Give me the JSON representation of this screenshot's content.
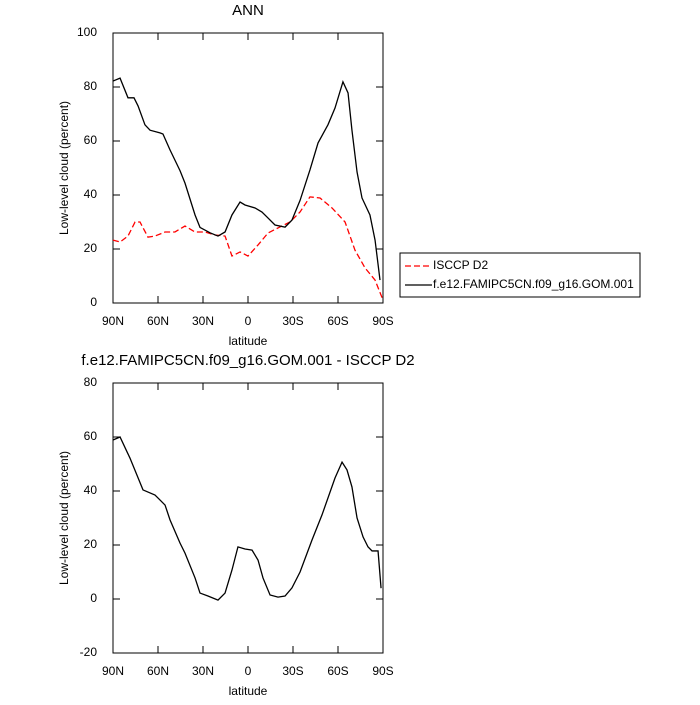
{
  "chart_data": [
    {
      "type": "line",
      "title": "ANN",
      "x_label": "latitude",
      "y_label": "Low-level cloud (percent)",
      "xlim": [
        90,
        -90
      ],
      "ylim": [
        0,
        100
      ],
      "xticks": [
        {
          "value": 90,
          "label": "90N"
        },
        {
          "value": 60,
          "label": "60N"
        },
        {
          "value": 30,
          "label": "30N"
        },
        0,
        {
          "value": -30,
          "label": "30S"
        },
        {
          "value": -60,
          "label": "60S"
        },
        {
          "value": -90,
          "label": "90S"
        }
      ],
      "yticks": [
        0,
        20,
        40,
        60,
        80,
        100
      ],
      "legend": "right",
      "series": [
        {
          "name": "ISCCP D2",
          "color": "#ff0000",
          "dashed": true,
          "x": [
            90,
            85.3,
            80,
            75.3,
            72,
            66.7,
            62,
            55.3,
            48.7,
            42,
            35.3,
            28.7,
            22,
            15.3,
            10.7,
            5.3,
            0,
            -6.7,
            -13.3,
            -20,
            -28,
            -34.7,
            -41.3,
            -48,
            -56,
            -64.7,
            -71.3,
            -78,
            -84.7,
            -90
          ],
          "values": [
            23.3,
            22.6,
            24.8,
            30,
            30,
            24.4,
            24.8,
            26.3,
            26.3,
            28.5,
            26.3,
            26.3,
            25.2,
            24.8,
            17.4,
            18.9,
            17.4,
            21.5,
            25.9,
            27.8,
            30,
            33.7,
            39.3,
            38.9,
            35.2,
            30,
            19.6,
            13,
            8.5,
            1.1
          ]
        },
        {
          "name": "f.e12.FAMIPC5CN.f09_g16.GOM.001",
          "color": "#000000",
          "dashed": false,
          "x": [
            90,
            85.3,
            80,
            76,
            73.3,
            68.7,
            65.3,
            58.7,
            56.7,
            52,
            45.3,
            42,
            35.3,
            32,
            25.3,
            20,
            15.3,
            10.7,
            5.3,
            2,
            -4.7,
            -9.3,
            -13.3,
            -18,
            -24.7,
            -29.3,
            -34.7,
            -41.3,
            -46.7,
            -53.3,
            -58,
            -63.3,
            -66.7,
            -69.3,
            -72.7,
            -76,
            -81.3,
            -84.7,
            -88
          ],
          "values": [
            82.2,
            83.3,
            76,
            76,
            73,
            66,
            64,
            63,
            62.6,
            56.7,
            49,
            44.4,
            32.6,
            28,
            26,
            24.8,
            26.3,
            32.6,
            37.4,
            36.3,
            35.2,
            33.7,
            31.5,
            28.9,
            28.1,
            30.7,
            38,
            49.3,
            59.3,
            66,
            72.2,
            81.9,
            77.8,
            64,
            48.5,
            38.9,
            32.6,
            23.3,
            8.5
          ]
        }
      ]
    },
    {
      "type": "line",
      "title": "f.e12.FAMIPC5CN.f09_g16.GOM.001 - ISCCP D2",
      "x_label": "latitude",
      "y_label": "Low-level cloud (percent)",
      "xlim": [
        90,
        -90
      ],
      "ylim": [
        -20,
        80
      ],
      "xticks": [
        {
          "value": 90,
          "label": "90N"
        },
        {
          "value": 60,
          "label": "60N"
        },
        {
          "value": 30,
          "label": "30N"
        },
        0,
        {
          "value": -30,
          "label": "30S"
        },
        {
          "value": -60,
          "label": "60S"
        },
        {
          "value": -90,
          "label": "90S"
        }
      ],
      "yticks": [
        -20,
        0,
        20,
        40,
        60,
        80
      ],
      "series": [
        {
          "color": "#000000",
          "dashed": false,
          "x": [
            90,
            85.3,
            78.7,
            70,
            62,
            58.7,
            55.3,
            52,
            45.3,
            42,
            35.3,
            32,
            26.7,
            20,
            15.3,
            10.7,
            6.7,
            2,
            -2.7,
            -6.7,
            -10,
            -14.7,
            -20,
            -24.7,
            -29.3,
            -34.7,
            -42.7,
            -49.3,
            -58,
            -62.7,
            -66,
            -69.3,
            -72.7,
            -76.7,
            -80,
            -82.7,
            -86.7,
            -88.7
          ],
          "values": [
            58.9,
            60,
            52.2,
            40.4,
            38.5,
            36.7,
            34.8,
            29.3,
            20.7,
            17,
            7.8,
            2.2,
            1.1,
            -0.4,
            2.2,
            10.7,
            19.3,
            18.5,
            18.1,
            14.4,
            7.8,
            1.5,
            0.7,
            1.1,
            4.1,
            10,
            21.9,
            31.1,
            44.8,
            50.7,
            47.8,
            41.5,
            30,
            23,
            19.3,
            17.8,
            17.8,
            4
          ]
        }
      ]
    }
  ]
}
